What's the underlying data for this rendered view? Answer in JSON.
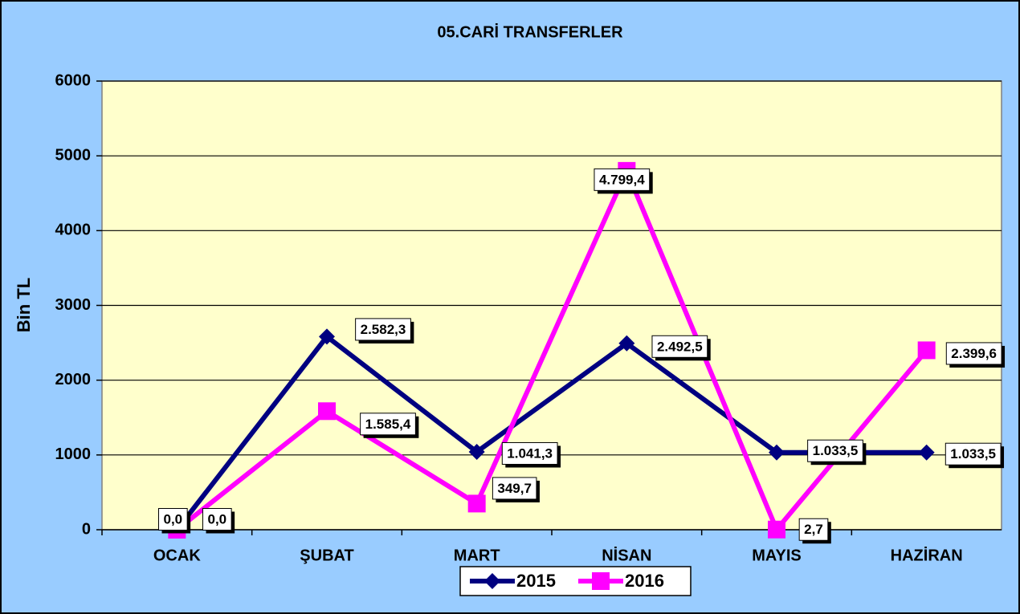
{
  "chart_data": {
    "type": "line",
    "title": "05.CARİ TRANSFERLER",
    "y_label": "Bin TL",
    "categories": [
      "OCAK",
      "ŞUBAT",
      "MART",
      "NİSAN",
      "MAYIS",
      "HAZİRAN"
    ],
    "series": [
      {
        "name": "2015",
        "color": "#000080",
        "marker": "diamond",
        "values": [
          0,
          2582.3,
          1041.3,
          2492.5,
          1033.5,
          1033.5
        ],
        "value_labels": [
          "0,0",
          "2.582,3",
          "1.041,3",
          "2.492,5",
          "1.033,5",
          "1.033,5"
        ]
      },
      {
        "name": "2016",
        "color": "#ff00ff",
        "marker": "square",
        "values": [
          0,
          1585.4,
          349.7,
          4799.4,
          2.7,
          2399.6
        ],
        "value_labels": [
          "0,0",
          "1.585,4",
          "349,7",
          "4.799,4",
          "2,7",
          "2.399,6"
        ]
      }
    ],
    "ylim": [
      0,
      6000
    ],
    "yticks": [
      0,
      1000,
      2000,
      3000,
      4000,
      5000,
      6000
    ],
    "grid": true,
    "legend": "bottom"
  }
}
